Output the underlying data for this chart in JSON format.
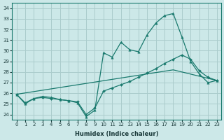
{
  "xlabel": "Humidex (Indice chaleur)",
  "bg_color": "#cce8e8",
  "grid_color": "#aacccc",
  "line_color": "#1a7a6e",
  "xlim": [
    -0.5,
    23.5
  ],
  "ylim": [
    23.5,
    34.5
  ],
  "xticks": [
    0,
    1,
    2,
    3,
    4,
    5,
    6,
    7,
    8,
    9,
    10,
    11,
    12,
    13,
    14,
    15,
    16,
    17,
    18,
    19,
    20,
    21,
    22,
    23
  ],
  "yticks": [
    24,
    25,
    26,
    27,
    28,
    29,
    30,
    31,
    32,
    33,
    34
  ],
  "curve_tri_x": [
    0,
    1,
    2,
    3,
    4,
    5,
    6,
    7,
    8,
    9,
    10,
    11,
    12,
    13,
    14,
    15,
    16,
    17,
    18,
    19,
    20,
    21,
    22,
    23
  ],
  "curve_tri_y": [
    25.9,
    25.0,
    25.5,
    25.7,
    25.6,
    25.4,
    25.3,
    25.1,
    23.8,
    24.4,
    29.8,
    29.4,
    30.8,
    30.1,
    29.9,
    31.5,
    32.6,
    33.3,
    33.5,
    31.3,
    29.0,
    27.8,
    27.0,
    27.2
  ],
  "curve_dia_x": [
    0,
    1,
    2,
    3,
    4,
    5,
    6,
    7,
    8,
    9,
    10,
    11,
    12,
    13,
    14,
    15,
    16,
    17,
    18,
    19,
    20,
    21,
    22,
    23
  ],
  "curve_dia_y": [
    25.9,
    25.1,
    25.5,
    25.6,
    25.5,
    25.4,
    25.3,
    25.2,
    24.0,
    24.6,
    26.2,
    26.5,
    26.8,
    27.1,
    27.5,
    27.9,
    28.3,
    28.8,
    29.2,
    29.6,
    29.2,
    28.1,
    27.5,
    27.2
  ],
  "curve_line_x": [
    0,
    18,
    23
  ],
  "curve_line_y": [
    25.9,
    28.2,
    27.2
  ]
}
